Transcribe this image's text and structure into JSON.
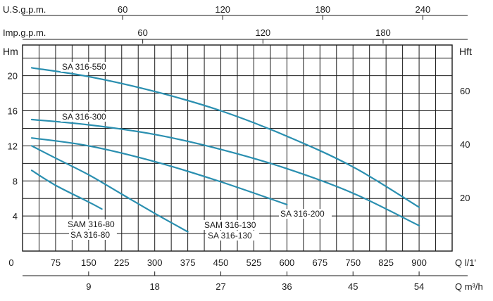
{
  "chart_data": {
    "type": "line",
    "title": "",
    "x_primary": {
      "label": "Q l/1'",
      "ticks": [
        0,
        75,
        150,
        225,
        300,
        375,
        450,
        525,
        600,
        675,
        750,
        825,
        900
      ],
      "range": [
        0,
        975
      ]
    },
    "x_top_usgpm": {
      "label": "U.S.g.p.m.",
      "ticks": [
        60,
        120,
        180,
        240
      ]
    },
    "x_top_impgpm": {
      "label": "Imp.g.p.m.",
      "ticks": [
        60,
        120,
        180
      ]
    },
    "x_bottom_m3h": {
      "label": "Q m³/h",
      "ticks": [
        9,
        18,
        27,
        36,
        45,
        54
      ]
    },
    "y_left": {
      "label": "Hm",
      "ticks": [
        4,
        8,
        12,
        16,
        20
      ],
      "range": [
        0,
        23.5
      ]
    },
    "y_right": {
      "label": "Hft",
      "ticks": [
        20,
        40,
        60
      ]
    },
    "grid": true,
    "series": [
      {
        "name": "SA 316-550",
        "x": [
          0,
          150,
          300,
          450,
          600,
          750,
          900
        ],
        "y": [
          20.9,
          19.9,
          18.2,
          16.0,
          13.1,
          9.6,
          5.0
        ]
      },
      {
        "name": "SA 316-300",
        "x": [
          0,
          150,
          300,
          450,
          600,
          750,
          900
        ],
        "y": [
          15.0,
          14.4,
          13.3,
          11.6,
          9.4,
          6.6,
          2.9
        ]
      },
      {
        "name": "SA 316-200",
        "x": [
          0,
          150,
          300,
          450,
          600
        ],
        "y": [
          12.9,
          12.0,
          10.2,
          7.9,
          5.3
        ]
      },
      {
        "name": "SA 316-130",
        "x": [
          0,
          75,
          150,
          225,
          300,
          375
        ],
        "y": [
          12.0,
          10.6,
          8.7,
          6.5,
          4.3,
          2.2
        ]
      },
      {
        "name": "SA 316-80",
        "x": [
          0,
          75,
          150,
          180
        ],
        "y": [
          9.2,
          7.5,
          5.6,
          4.8
        ]
      }
    ],
    "annotations": [
      {
        "text": "SA 316-550"
      },
      {
        "text": "SA 316-300"
      },
      {
        "text": "SA 316-200"
      },
      {
        "text": "SAM 316-130"
      },
      {
        "text": "SA 316-130"
      },
      {
        "text": "SAM 316-80"
      },
      {
        "text": "SA 316-80"
      }
    ],
    "colors": {
      "curve": "#2a8fb0",
      "grid": "#1a1a1a"
    }
  }
}
